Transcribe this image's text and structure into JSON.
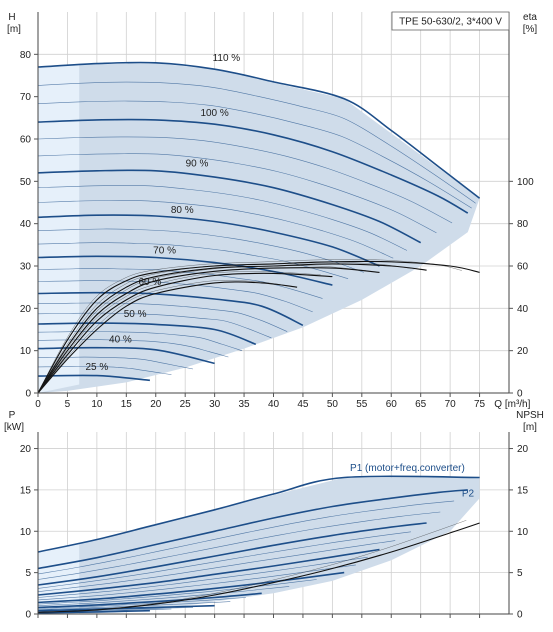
{
  "chart_data": [
    {
      "type": "line",
      "title": "TPE 50-630/2, 3*400 V",
      "xlabel": "Q [m³/h]",
      "ylabel": "H [m]",
      "ylabel_line1": "H",
      "ylabel_line2": "[m]",
      "ylabel_right": "eta [%]",
      "ylabel_right_line1": "eta",
      "ylabel_right_line2": "[%]",
      "xlim": [
        0,
        80
      ],
      "ylim": [
        0,
        90
      ],
      "ylim_right": [
        0,
        180
      ],
      "x_ticks": [
        0,
        5,
        10,
        15,
        20,
        25,
        30,
        35,
        40,
        45,
        50,
        55,
        60,
        65,
        70,
        75
      ],
      "y_ticks": [
        0,
        10,
        20,
        30,
        40,
        50,
        60,
        70,
        80
      ],
      "y_right_ticks": [
        0,
        20,
        40,
        60,
        80,
        100
      ],
      "grid": true,
      "operating_region": {
        "outline": [
          [
            0,
            0
          ],
          [
            0,
            77
          ],
          [
            7,
            77.5
          ],
          [
            19,
            78
          ],
          [
            30,
            76.5
          ],
          [
            52,
            69.5
          ],
          [
            75,
            46
          ],
          [
            73,
            38
          ],
          [
            65,
            30
          ],
          [
            55,
            22
          ],
          [
            45,
            15.5
          ],
          [
            35,
            10.5
          ],
          [
            25,
            6
          ],
          [
            15,
            2.5
          ],
          [
            5,
            0.5
          ]
        ],
        "light_band": [
          [
            0,
            0
          ],
          [
            0,
            77
          ],
          [
            7,
            77.5
          ],
          [
            7,
            2
          ]
        ]
      },
      "series": [
        {
          "name": "110 %",
          "values": [
            [
              0,
              77
            ],
            [
              10,
              77.8
            ],
            [
              20,
              78
            ],
            [
              30,
              76.5
            ],
            [
              40,
              73.5
            ],
            [
              52,
              69.5
            ],
            [
              60,
              62
            ],
            [
              68,
              53.5
            ],
            [
              75,
              46
            ]
          ],
          "label_at": [
            32,
            78
          ]
        },
        {
          "name": "100 %",
          "values": [
            [
              0,
              64
            ],
            [
              10,
              64.5
            ],
            [
              20,
              64.5
            ],
            [
              30,
              63.5
            ],
            [
              40,
              61
            ],
            [
              50,
              57
            ],
            [
              60,
              51.5
            ],
            [
              68,
              46.5
            ],
            [
              73,
              42.5
            ]
          ],
          "label_at": [
            30,
            65
          ]
        },
        {
          "name": "90 %",
          "values": [
            [
              0,
              52
            ],
            [
              10,
              52.5
            ],
            [
              20,
              52.5
            ],
            [
              30,
              51
            ],
            [
              40,
              48.5
            ],
            [
              50,
              44.5
            ],
            [
              58,
              40.5
            ],
            [
              65,
              35.5
            ]
          ],
          "label_at": [
            27,
            53
          ]
        },
        {
          "name": "80 %",
          "values": [
            [
              0,
              41.5
            ],
            [
              10,
              42
            ],
            [
              20,
              41.8
            ],
            [
              30,
              40.5
            ],
            [
              40,
              38
            ],
            [
              50,
              34.5
            ],
            [
              58,
              30
            ]
          ],
          "label_at": [
            24.5,
            42
          ]
        },
        {
          "name": "70 %",
          "values": [
            [
              0,
              32
            ],
            [
              10,
              32.3
            ],
            [
              20,
              32
            ],
            [
              30,
              30.8
            ],
            [
              40,
              28.7
            ],
            [
              50,
              25.5
            ]
          ],
          "label_at": [
            21.5,
            32.5
          ]
        },
        {
          "name": "60 %",
          "values": [
            [
              0,
              23.5
            ],
            [
              10,
              23.7
            ],
            [
              20,
              23.4
            ],
            [
              30,
              22.2
            ],
            [
              38,
              20.5
            ],
            [
              45,
              16
            ]
          ],
          "label_at": [
            19,
            25
          ]
        },
        {
          "name": "50 %",
          "values": [
            [
              0,
              16.3
            ],
            [
              10,
              16.5
            ],
            [
              20,
              16.2
            ],
            [
              30,
              15
            ],
            [
              37,
              11.5
            ]
          ],
          "label_at": [
            16.5,
            17.5
          ]
        },
        {
          "name": "40 %",
          "values": [
            [
              0,
              10.5
            ],
            [
              10,
              10.7
            ],
            [
              20,
              10.2
            ],
            [
              30,
              7
            ]
          ],
          "label_at": [
            14,
            11.5
          ]
        },
        {
          "name": "25 %",
          "values": [
            [
              0,
              4
            ],
            [
              10,
              4.1
            ],
            [
              19,
              3
            ]
          ],
          "label_at": [
            10,
            5
          ]
        }
      ],
      "eta_curves": [
        {
          "values": [
            [
              0,
              0
            ],
            [
              5,
              25
            ],
            [
              10,
              44
            ],
            [
              15,
              53
            ],
            [
              20,
              57
            ],
            [
              30,
              60
            ],
            [
              40,
              61
            ],
            [
              50,
              62
            ],
            [
              60,
              62
            ],
            [
              70,
              60
            ],
            [
              75,
              57
            ]
          ]
        },
        {
          "values": [
            [
              0,
              0
            ],
            [
              5,
              22
            ],
            [
              10,
              40
            ],
            [
              15,
              50
            ],
            [
              20,
              55
            ],
            [
              30,
              59
            ],
            [
              40,
              60
            ],
            [
              50,
              61
            ],
            [
              60,
              60
            ],
            [
              66,
              58
            ]
          ]
        },
        {
          "values": [
            [
              0,
              0
            ],
            [
              5,
              20
            ],
            [
              10,
              37
            ],
            [
              15,
              47
            ],
            [
              20,
              53
            ],
            [
              30,
              57.5
            ],
            [
              40,
              59
            ],
            [
              50,
              59
            ],
            [
              58,
              57
            ]
          ]
        },
        {
          "values": [
            [
              0,
              0
            ],
            [
              5,
              18
            ],
            [
              10,
              34
            ],
            [
              15,
              44
            ],
            [
              20,
              50
            ],
            [
              30,
              55.5
            ],
            [
              40,
              56.5
            ],
            [
              50,
              55
            ]
          ]
        },
        {
          "values": [
            [
              0,
              0
            ],
            [
              5,
              16
            ],
            [
              10,
              30
            ],
            [
              15,
              41
            ],
            [
              20,
              47
            ],
            [
              30,
              52
            ],
            [
              38,
              52
            ],
            [
              44,
              50
            ]
          ]
        }
      ]
    },
    {
      "type": "line",
      "xlabel": "",
      "ylabel": "P [kW]",
      "ylabel_line1": "P",
      "ylabel_line2": "[kW]",
      "ylabel_right": "NPSH [m]",
      "ylabel_right_line1": "NPSH",
      "ylabel_right_line2": "[m]",
      "xlim": [
        0,
        80
      ],
      "ylim": [
        0,
        22
      ],
      "y_ticks": [
        0,
        5,
        10,
        15,
        20
      ],
      "y_right_ticks": [
        0,
        5,
        10,
        15,
        20
      ],
      "grid": true,
      "operating_region": {
        "outline": [
          [
            0,
            0
          ],
          [
            0,
            7.5
          ],
          [
            7,
            8.5
          ],
          [
            52,
            16.5
          ],
          [
            75,
            16.5
          ],
          [
            75,
            14
          ],
          [
            70,
            10
          ],
          [
            60,
            6.5
          ],
          [
            50,
            4
          ],
          [
            40,
            2.5
          ],
          [
            30,
            1.5
          ],
          [
            20,
            0.5
          ],
          [
            10,
            0.1
          ]
        ],
        "light_band": [
          [
            0,
            0
          ],
          [
            0,
            7.5
          ],
          [
            7,
            8.5
          ],
          [
            7,
            0
          ]
        ]
      },
      "series": [
        {
          "name": "P1 (motor+freq.converter)",
          "values": [
            [
              0,
              7.5
            ],
            [
              10,
              9
            ],
            [
              20,
              10.8
            ],
            [
              30,
              12.6
            ],
            [
              40,
              14.5
            ],
            [
              52,
              16.5
            ],
            [
              75,
              16.5
            ]
          ],
          "label_at": [
            53,
            17.3
          ]
        },
        {
          "name": "P2",
          "values": [
            [
              0,
              5.5
            ],
            [
              10,
              6.8
            ],
            [
              20,
              8.4
            ],
            [
              30,
              10
            ],
            [
              40,
              11.6
            ],
            [
              50,
              13
            ],
            [
              60,
              14
            ],
            [
              68,
              14.7
            ],
            [
              73,
              15
            ]
          ],
          "label_at": [
            72,
            14.2
          ]
        },
        {
          "name": "",
          "values": [
            [
              0,
              3.5
            ],
            [
              10,
              4.5
            ],
            [
              20,
              5.7
            ],
            [
              30,
              7
            ],
            [
              40,
              8.3
            ],
            [
              50,
              9.5
            ],
            [
              60,
              10.5
            ],
            [
              66,
              11
            ]
          ]
        },
        {
          "name": "",
          "values": [
            [
              0,
              2.3
            ],
            [
              10,
              3
            ],
            [
              20,
              3.8
            ],
            [
              30,
              4.8
            ],
            [
              40,
              5.8
            ],
            [
              50,
              6.9
            ],
            [
              58,
              7.8
            ]
          ]
        },
        {
          "name": "",
          "values": [
            [
              0,
              1.4
            ],
            [
              10,
              1.8
            ],
            [
              20,
              2.4
            ],
            [
              30,
              3.1
            ],
            [
              40,
              3.9
            ],
            [
              52,
              5
            ]
          ]
        },
        {
          "name": "",
          "values": [
            [
              0,
              0.8
            ],
            [
              10,
              1.1
            ],
            [
              20,
              1.5
            ],
            [
              30,
              2
            ],
            [
              38,
              2.5
            ]
          ]
        },
        {
          "name": "",
          "values": [
            [
              0,
              0.4
            ],
            [
              10,
              0.6
            ],
            [
              20,
              0.8
            ],
            [
              30,
              1
            ]
          ]
        },
        {
          "name": "",
          "values": [
            [
              0,
              0.15
            ],
            [
              10,
              0.25
            ],
            [
              19,
              0.4
            ]
          ]
        }
      ],
      "npsh_curve": {
        "values": [
          [
            0,
            0.2
          ],
          [
            10,
            0.5
          ],
          [
            20,
            1.2
          ],
          [
            30,
            2.3
          ],
          [
            40,
            3.8
          ],
          [
            50,
            5.5
          ],
          [
            60,
            7.5
          ],
          [
            70,
            9.8
          ],
          [
            75,
            11
          ]
        ]
      }
    }
  ]
}
